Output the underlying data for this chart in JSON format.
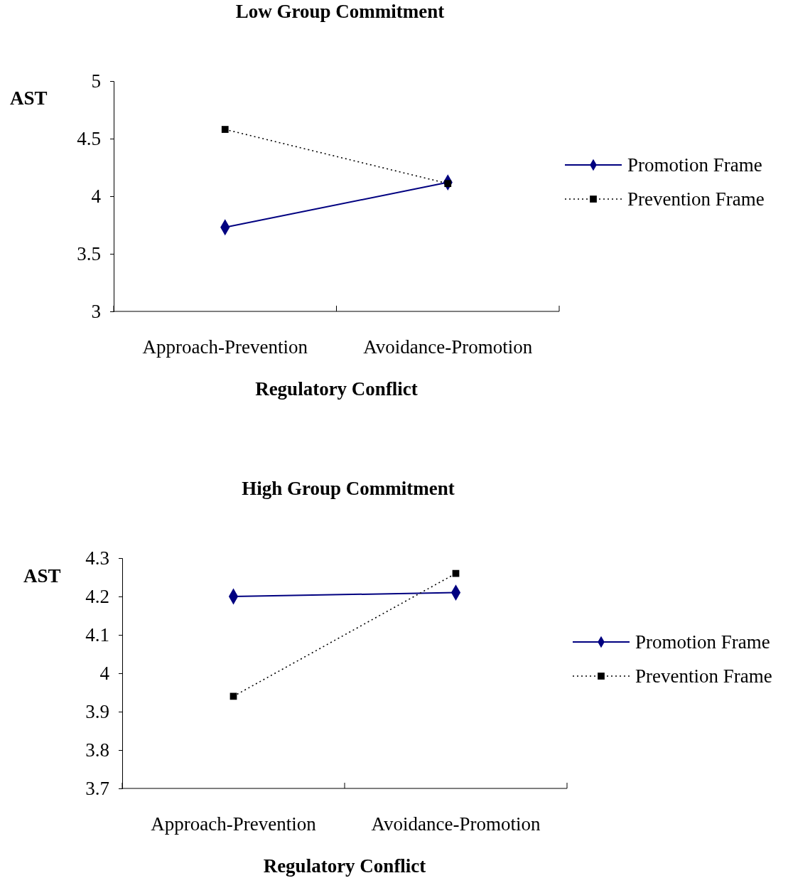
{
  "chart_data": [
    {
      "type": "line",
      "title": "Low Group Commitment",
      "xlabel": "Regulatory Conflict",
      "ylabel": "AST",
      "categories": [
        "Approach-Prevention",
        "Avoidance-Promotion"
      ],
      "ylim": [
        3,
        5
      ],
      "yticks": [
        3,
        3.5,
        4,
        4.5,
        5
      ],
      "legend": "right",
      "grid": false,
      "series": [
        {
          "name": "Promotion Frame",
          "color": "#000080",
          "values": [
            3.73,
            4.12
          ],
          "marker": "diamond",
          "line_style": "solid"
        },
        {
          "name": "Prevention Frame",
          "color": "#000000",
          "values": [
            4.58,
            4.11
          ],
          "marker": "square",
          "line_style": "dotted"
        }
      ]
    },
    {
      "type": "line",
      "title": "High Group Commitment",
      "xlabel": "Regulatory Conflict",
      "ylabel": "AST",
      "categories": [
        "Approach-Prevention",
        "Avoidance-Promotion"
      ],
      "ylim": [
        3.7,
        4.3
      ],
      "yticks": [
        3.7,
        3.8,
        3.9,
        4,
        4.1,
        4.2,
        4.3
      ],
      "legend": "right",
      "grid": false,
      "series": [
        {
          "name": "Promotion Frame",
          "color": "#000080",
          "values": [
            4.2,
            4.21
          ],
          "marker": "diamond",
          "line_style": "solid"
        },
        {
          "name": "Prevention Frame",
          "color": "#000000",
          "values": [
            3.94,
            4.26
          ],
          "marker": "square",
          "line_style": "dotted"
        }
      ]
    }
  ]
}
